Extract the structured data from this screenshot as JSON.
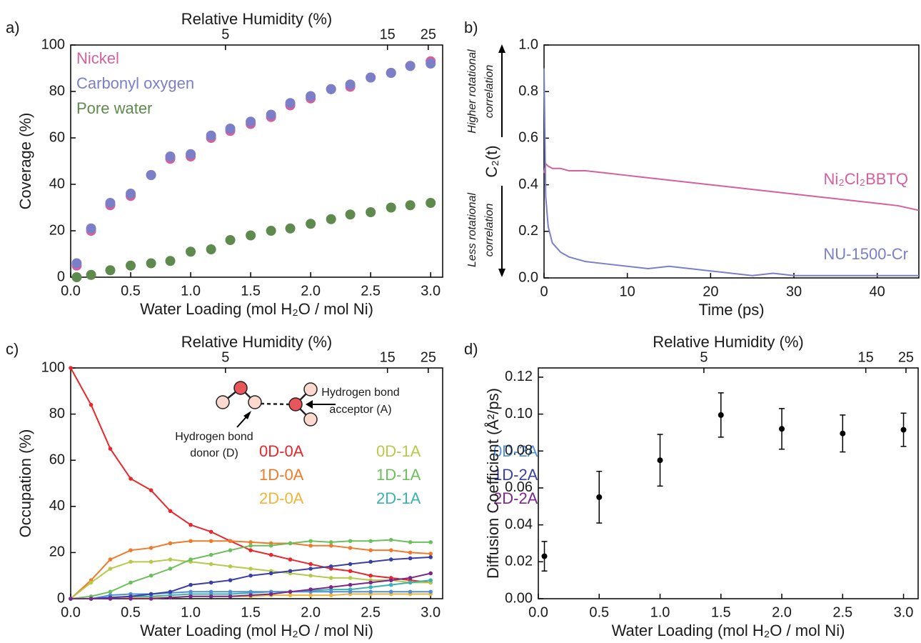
{
  "chart_data": [
    {
      "type": "scatter",
      "panel_label": "a)",
      "x_label": "Water Loading (mol H₂O / mol Ni)",
      "x2_label": "Relative Humidity (%)",
      "y_label": "Coverage (%)",
      "xlim": [
        0,
        3.1
      ],
      "xticks": [
        {
          "value": 0,
          "label": "0.0"
        },
        0.5,
        {
          "value": 1,
          "label": "1.0"
        },
        1.5,
        {
          "value": 2,
          "label": "2.0"
        },
        2.5,
        {
          "value": 3,
          "label": "3.0"
        }
      ],
      "x2ticks": [
        {
          "value": 1.29,
          "label": "5"
        },
        {
          "value": 2.64,
          "label": "15"
        },
        {
          "value": 2.98,
          "label": "25"
        }
      ],
      "ylim": [
        0,
        100
      ],
      "yticks": [
        0,
        20,
        40,
        60,
        80,
        100
      ],
      "x": [
        0.05,
        0.17,
        0.33,
        0.5,
        0.67,
        0.83,
        1.0,
        1.17,
        1.33,
        1.5,
        1.67,
        1.83,
        2.0,
        2.17,
        2.33,
        2.5,
        2.67,
        2.83,
        3.0
      ],
      "series": [
        {
          "name": "Nickel",
          "color": "#d6609b",
          "values": [
            5,
            20,
            31,
            35,
            44,
            51,
            52,
            60,
            63,
            66,
            69,
            74,
            77,
            81,
            82,
            86,
            88,
            91,
            93
          ]
        },
        {
          "name": "Carbonyl oxygen",
          "color": "#7b7fc8",
          "values": [
            6,
            21,
            32,
            36,
            44,
            52,
            53,
            61,
            64,
            67,
            70,
            75,
            78,
            81,
            83,
            86,
            88,
            91,
            92
          ]
        },
        {
          "name": "Pore water",
          "color": "#5f8a4e",
          "values": [
            0,
            1,
            3,
            5,
            6,
            7,
            11,
            12,
            16,
            18,
            20,
            21,
            23,
            25,
            27,
            28,
            30,
            31,
            32
          ]
        }
      ]
    },
    {
      "type": "line",
      "panel_label": "b)",
      "x_label": "Time (ps)",
      "y_label": "C₂(t)",
      "annotations": [
        [
          "Higher rotational",
          "correlation"
        ],
        [
          "Less rotational",
          "correlation"
        ]
      ],
      "xlim": [
        0,
        45
      ],
      "xticks": [
        0,
        10,
        20,
        30,
        40
      ],
      "ylim": [
        0,
        1
      ],
      "yticks": [
        {
          "value": 0,
          "label": "0.0"
        },
        0.2,
        0.4,
        0.6,
        0.8,
        {
          "value": 1,
          "label": "1.0"
        }
      ],
      "x": [
        0,
        0.2,
        0.5,
        1,
        2,
        3,
        4,
        5,
        7.5,
        10,
        12.5,
        15,
        17.5,
        20,
        22.5,
        25,
        27.5,
        30,
        32.5,
        35,
        37.5,
        40,
        42.5,
        45
      ],
      "series": [
        {
          "name": "Ni₂Cl₂BBTQ",
          "color": "#d6609b",
          "values": [
            0.45,
            0.49,
            0.48,
            0.47,
            0.47,
            0.46,
            0.46,
            0.46,
            0.45,
            0.44,
            0.43,
            0.42,
            0.41,
            0.4,
            0.39,
            0.38,
            0.37,
            0.36,
            0.35,
            0.34,
            0.33,
            0.32,
            0.31,
            0.29
          ]
        },
        {
          "name": "NU-1500-Cr",
          "color": "#7b7fc8",
          "values": [
            0.9,
            0.35,
            0.22,
            0.15,
            0.11,
            0.09,
            0.08,
            0.07,
            0.06,
            0.05,
            0.04,
            0.05,
            0.04,
            0.03,
            0.02,
            0.01,
            0.02,
            0.01,
            0.01,
            0.01,
            0.01,
            0.01,
            0.01,
            0.01
          ]
        }
      ]
    },
    {
      "type": "line",
      "markers": true,
      "panel_label": "c)",
      "x_label": "Water Loading (mol H₂O / mol Ni)",
      "x2_label": "Relative Humidity (%)",
      "y_label": "Occupation (%)",
      "annotations": [
        [
          "Hydrogen bond",
          "donor (D)"
        ],
        [
          "Hydrogen bond",
          "acceptor (A)"
        ]
      ],
      "xlim": [
        0,
        3.1
      ],
      "xticks": [
        {
          "value": 0,
          "label": "0.0"
        },
        0.5,
        {
          "value": 1,
          "label": "1.0"
        },
        1.5,
        {
          "value": 2,
          "label": "2.0"
        },
        2.5,
        {
          "value": 3,
          "label": "3.0"
        }
      ],
      "x2ticks": [
        {
          "value": 1.29,
          "label": "5"
        },
        {
          "value": 2.64,
          "label": "15"
        },
        {
          "value": 2.98,
          "label": "25"
        }
      ],
      "ylim": [
        0,
        100
      ],
      "yticks": [
        0,
        20,
        40,
        60,
        80,
        100
      ],
      "x": [
        0.0,
        0.17,
        0.33,
        0.5,
        0.67,
        0.83,
        1.0,
        1.17,
        1.33,
        1.5,
        1.67,
        1.83,
        2.0,
        2.17,
        2.33,
        2.5,
        2.67,
        2.83,
        3.0
      ],
      "series": [
        {
          "name": "0D-0A",
          "color": "#e8262b",
          "values": [
            100,
            84,
            65,
            52,
            47,
            38,
            32,
            29,
            25,
            21,
            19,
            17,
            15,
            13,
            12,
            10,
            9,
            8,
            7
          ]
        },
        {
          "name": "1D-0A",
          "color": "#f07a2b",
          "values": [
            0,
            8,
            17,
            21,
            22,
            24,
            25,
            25,
            25,
            24.5,
            24,
            24,
            23,
            23,
            22,
            21,
            21,
            20,
            19.5
          ]
        },
        {
          "name": "2D-0A",
          "color": "#f0b53a",
          "values": [
            0,
            0,
            0,
            0.5,
            0.5,
            0.5,
            1,
            1,
            1,
            1,
            1.5,
            1.5,
            1.5,
            1.5,
            2,
            2,
            2,
            2,
            2
          ]
        },
        {
          "name": "0D-1A",
          "color": "#b8c94a",
          "values": [
            0,
            7,
            13,
            16,
            16,
            17,
            16,
            15,
            14,
            13,
            12,
            11,
            10,
            9,
            9,
            8,
            8,
            7,
            7
          ]
        },
        {
          "name": "1D-1A",
          "color": "#6cbf5c",
          "values": [
            0,
            1,
            3,
            7,
            10,
            13,
            17,
            19,
            21,
            23,
            23,
            24,
            25,
            24.5,
            25,
            25,
            25.5,
            24.5,
            24.5
          ]
        },
        {
          "name": "2D-1A",
          "color": "#3ab3b0",
          "values": [
            0,
            0,
            0.5,
            1,
            1,
            1.5,
            2,
            2,
            2,
            2.5,
            3,
            3,
            3.5,
            4,
            4,
            5,
            6,
            7,
            8
          ]
        },
        {
          "name": "0D-2A",
          "color": "#4f8fd6",
          "values": [
            0,
            0,
            1.5,
            2,
            2,
            2.5,
            3,
            3,
            3,
            3,
            3,
            3,
            3,
            3,
            3,
            3,
            3,
            3,
            3
          ]
        },
        {
          "name": "1D-2A",
          "color": "#3a3fa3",
          "values": [
            0,
            0,
            0.5,
            1,
            2,
            3,
            6,
            7,
            8,
            10,
            11,
            12,
            13,
            14,
            15,
            16,
            17,
            17.5,
            18
          ]
        },
        {
          "name": "2D-2A",
          "color": "#7a2888",
          "values": [
            0,
            0,
            0,
            0,
            0,
            0.5,
            1,
            1,
            1,
            1.5,
            2,
            3,
            4,
            5,
            6,
            7,
            8,
            9,
            11
          ]
        }
      ]
    },
    {
      "type": "errorbar",
      "panel_label": "d)",
      "x_label": "Water Loading (mol H₂O / mol Ni)",
      "x2_label": "Relative Humidity (%)",
      "y_label": "Diffusion Coefficient (Å²/ps)",
      "xlim": [
        0,
        3.12
      ],
      "xticks": [
        {
          "value": 0,
          "label": "0.0"
        },
        0.5,
        {
          "value": 1,
          "label": "1.0"
        },
        1.5,
        {
          "value": 2,
          "label": "2.0"
        },
        2.5,
        {
          "value": 3,
          "label": "3.0"
        }
      ],
      "x2ticks": [
        {
          "value": 1.36,
          "label": "5"
        },
        {
          "value": 2.69,
          "label": "15"
        },
        {
          "value": 3.02,
          "label": "25"
        }
      ],
      "ylim": [
        0,
        0.125
      ],
      "yticks": [
        {
          "value": 0,
          "label": "0.00"
        },
        0.02,
        0.04,
        0.06,
        0.08,
        {
          "value": 0.1,
          "label": "0.10"
        },
        0.12
      ],
      "x": [
        0.05,
        0.5,
        1,
        1.5,
        2,
        2.5,
        3
      ],
      "color": "#000000",
      "values": [
        0.023,
        0.055,
        0.075,
        0.0995,
        0.092,
        0.0895,
        0.0915
      ],
      "errors": [
        0.008,
        0.014,
        0.014,
        0.012,
        0.011,
        0.01,
        0.009
      ]
    }
  ]
}
